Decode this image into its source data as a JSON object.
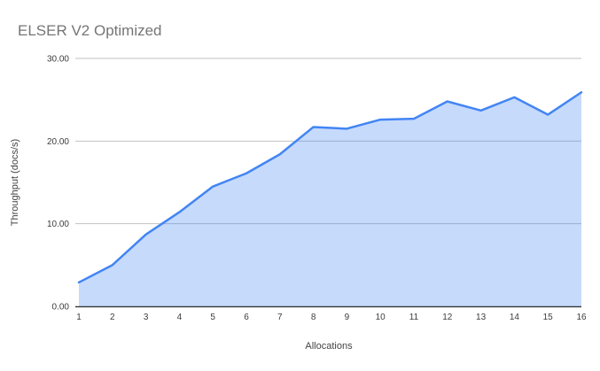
{
  "chart_data": {
    "type": "area",
    "title": "ELSER V2 Optimized",
    "xlabel": "Allocations",
    "ylabel": "Throughput (docs/s)",
    "x": [
      1,
      2,
      3,
      4,
      5,
      6,
      7,
      8,
      9,
      10,
      11,
      12,
      13,
      14,
      15,
      16
    ],
    "x_tick_labels": [
      "1",
      "2",
      "3",
      "4",
      "5",
      "6",
      "7",
      "8",
      "9",
      "10",
      "11",
      "12",
      "13",
      "14",
      "15",
      "16"
    ],
    "series": [
      {
        "name": "Throughput",
        "values": [
          2.9,
          5.0,
          8.7,
          11.4,
          14.5,
          16.1,
          18.4,
          21.7,
          21.5,
          22.6,
          22.7,
          24.8,
          23.7,
          25.3,
          23.2,
          25.9
        ]
      }
    ],
    "ylim": [
      0,
      30
    ],
    "xlim": [
      1,
      16
    ],
    "yticks": [
      0,
      10,
      20,
      30
    ],
    "ytick_labels": [
      "0.00",
      "10.00",
      "20.00",
      "30.00"
    ],
    "grid": true,
    "legend_position": "none",
    "colors": {
      "line": "#4285f4",
      "fill": "rgba(66,133,244,0.3)",
      "gridline": "#c2c2c2",
      "axis_line": "#333333",
      "tick_label": "#3c3c3c",
      "title": "#757575",
      "axis_title": "#434343",
      "background": "#ffffff"
    }
  }
}
